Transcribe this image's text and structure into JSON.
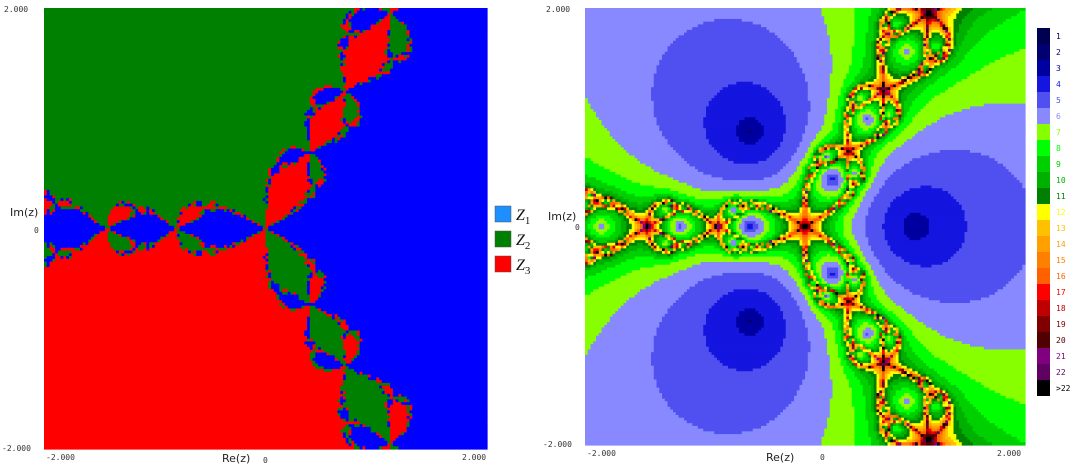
{
  "panels": [
    {
      "y_axis_label": "Im(z)",
      "x_axis_label": "Re(z)",
      "y_ticks": [
        "2.000",
        "0",
        "-2.000"
      ],
      "x_ticks": [
        "-2.000",
        "0",
        "2.000"
      ],
      "legend": [
        {
          "symbol": "Z",
          "subscript": "1"
        },
        {
          "symbol": "Z",
          "subscript": "2"
        },
        {
          "symbol": "Z",
          "subscript": "3"
        }
      ]
    },
    {
      "y_axis_label": "Im(z)",
      "x_axis_label": "Re(z)",
      "y_ticks": [
        "2.000",
        "0",
        "-2.000"
      ],
      "x_ticks": [
        "-2.000",
        "0",
        "2.000"
      ],
      "colorbar": [
        "1",
        "2",
        "3",
        "4",
        "5",
        "6",
        "7",
        "8",
        "9",
        "10",
        "11",
        "12",
        "13",
        "14",
        "15",
        "16",
        "17",
        "18",
        "19",
        "20",
        "21",
        "22",
        ">22"
      ]
    }
  ]
}
